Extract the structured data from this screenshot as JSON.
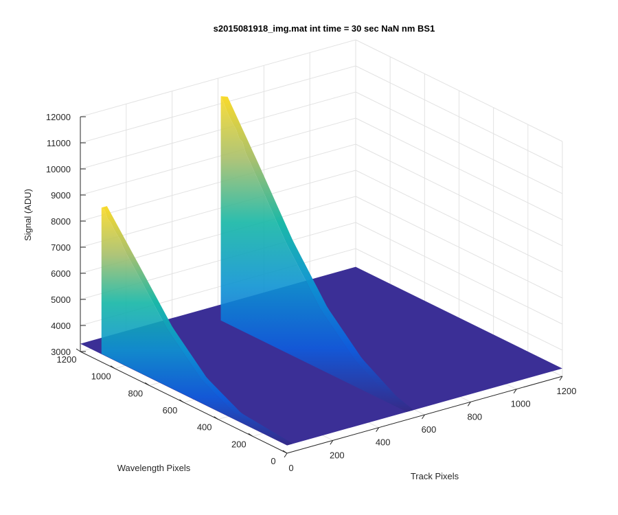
{
  "chart_data": {
    "type": "surface3d",
    "title": "s2015081918_img.mat int time = 30 sec  NaN nm BS1",
    "xlabel": "Track Pixels",
    "ylabel": "Wavelength Pixels",
    "zlabel": "Signal (ADU)",
    "xlim": [
      0,
      1200
    ],
    "ylim": [
      0,
      1200
    ],
    "zlim": [
      3000,
      12000
    ],
    "x_ticks": [
      "0",
      "200",
      "400",
      "600",
      "800",
      "1000",
      "1200"
    ],
    "y_ticks": [
      "0",
      "200",
      "400",
      "600",
      "800",
      "1000",
      "1200"
    ],
    "z_ticks": [
      "3000",
      "4000",
      "5000",
      "6000",
      "7000",
      "8000",
      "9000",
      "10000",
      "11000",
      "12000"
    ],
    "grid": true,
    "colormap": "parula",
    "baseline_signal": 3300,
    "series": [
      {
        "track_center": 14,
        "track_width": 24,
        "peak_at_wavelength_1080": 8900,
        "values_along_wavelength": [
          [
            1080,
            8900
          ],
          [
            900,
            7300
          ],
          [
            700,
            5500
          ],
          [
            500,
            4200
          ],
          [
            300,
            3500
          ],
          [
            0,
            3300
          ]
        ]
      },
      {
        "track_center": 537,
        "track_width": 30,
        "peak_at_wavelength_1080": 11800,
        "values_along_wavelength": [
          [
            1080,
            11800
          ],
          [
            900,
            9800
          ],
          [
            700,
            7500
          ],
          [
            500,
            5600
          ],
          [
            300,
            4300
          ],
          [
            100,
            3500
          ],
          [
            0,
            3300
          ]
        ]
      }
    ]
  }
}
